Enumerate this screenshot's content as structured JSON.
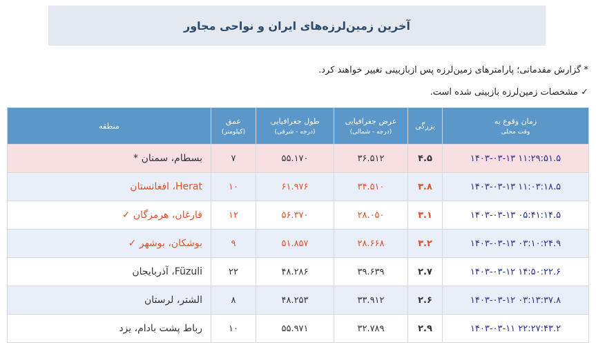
{
  "header": {
    "title": "آخرین زمین‌لرزه‌های ایران و نواحی مجاور"
  },
  "notes": [
    "* گزارش مقدماتی؛ پارامترهای زمین‌لرزه پس ازبازبینی تغییر خواهند کرد.",
    "✓ مشخصات زمین‌لرزه بازبینی شده است."
  ],
  "table": {
    "columns": [
      {
        "title": "زمان وقوع به",
        "sub": "وقت محلی"
      },
      {
        "title": "بزرگی"
      },
      {
        "title": "عرض جغرافیایی",
        "sub": "(درجه - شمالی)"
      },
      {
        "title": "طول جغرافیایی",
        "sub": "(درجه - شرقی)"
      },
      {
        "title": "عمق",
        "sub": "(کیلومتر)"
      },
      {
        "title": "منطقه"
      }
    ],
    "rows": [
      [
        "۱۴۰۳-۰۳-۱۳ ۱۱:۲۹:۵۱.۵",
        "۴.۵",
        "۳۶.۵۱۲",
        "۵۵.۱۷۰",
        "۷",
        "بسطام، سمنان *"
      ],
      [
        "۱۴۰۳-۰۳-۱۳ ۱۱:۰۳:۱۸.۵",
        "۳.۸",
        "۳۴.۵۱۰",
        "۶۱.۹۷۶",
        "۱۰",
        "Herat، افغانستان"
      ],
      [
        "۱۴۰۳-۰۳-۱۳ ۰۵:۴۱:۱۴.۵",
        "۳.۱",
        "۲۸.۰۵۰",
        "۵۶.۳۷۰",
        "۱۲",
        "فارغان، هرمزگان ✓"
      ],
      [
        "۱۴۰۳-۰۳-۱۳ ۰۳:۱۰:۲۴.۹",
        "۳.۲",
        "۲۸.۶۶۸",
        "۵۱.۸۵۷",
        "۹",
        "بوشکان، بوشهر ✓"
      ],
      [
        "۱۴۰۳-۰۳-۱۲ ۱۴:۵۰:۲۲.۶",
        "۲.۷",
        "۳۹.۶۳۹",
        "۴۸.۲۸۶",
        "۲۲",
        "Füzuli، آذربایجان"
      ],
      [
        "۱۴۰۳-۰۳-۱۲ ۰۳:۱۳:۳۷.۸",
        "۲.۶",
        "۳۳.۹۱۲",
        "۴۸.۲۵۳",
        "۸",
        "الشتر، لرستان"
      ],
      [
        "۱۴۰۳-۰۳-۱۱ ۲۲:۲۷:۴۳.۲",
        "۲.۹",
        "۳۲.۷۸۹",
        "۵۵.۹۷۱",
        "۱۰",
        "رباط پشت بادام، یزد"
      ]
    ]
  }
}
